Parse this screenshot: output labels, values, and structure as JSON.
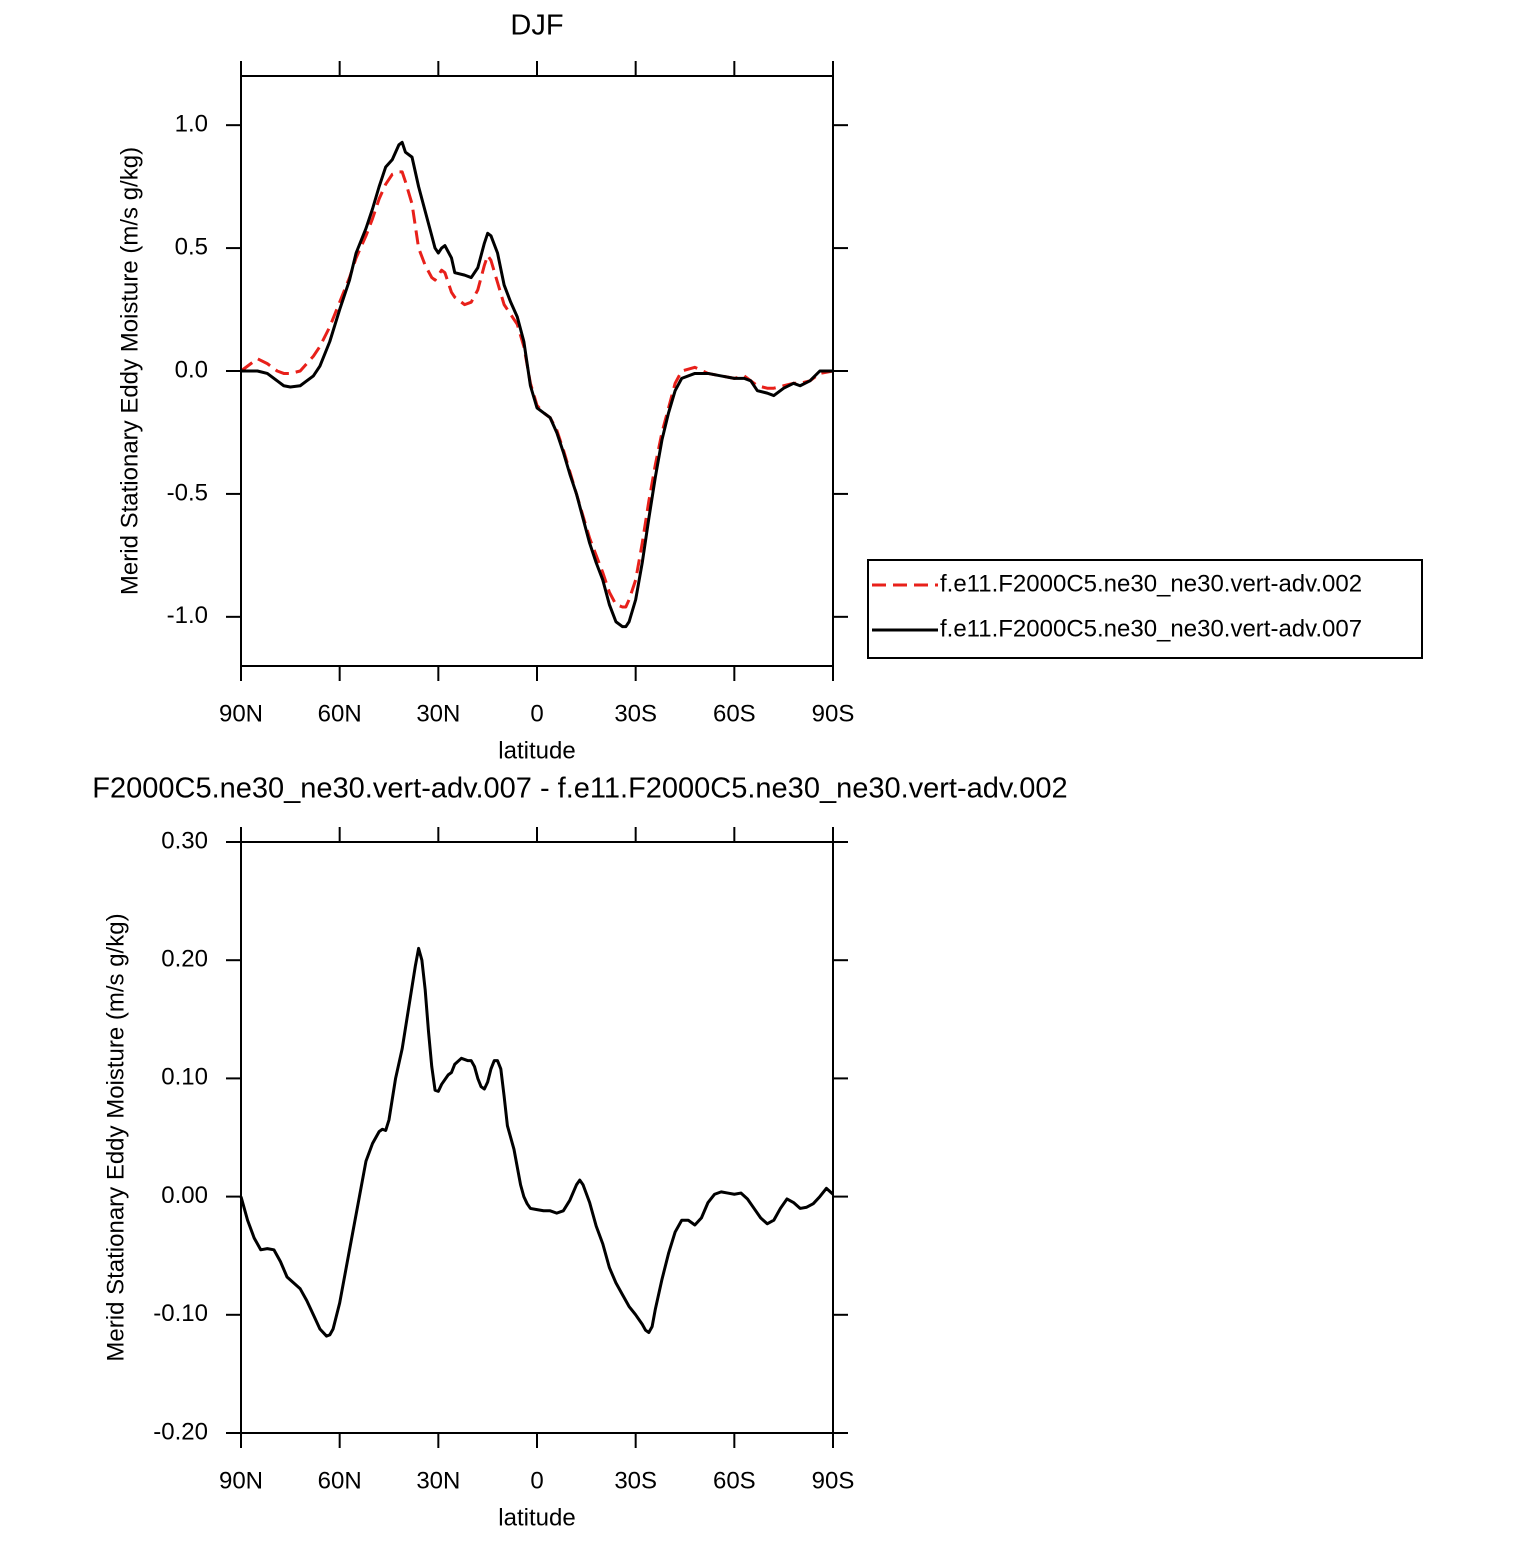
{
  "chart_data": [
    {
      "type": "line",
      "title": "DJF",
      "xlabel": "latitude",
      "ylabel": "Merid Stationary Eddy Moisture (m/s g/kg)",
      "xlim": [
        90,
        -90
      ],
      "ylim": [
        -1.2,
        1.2
      ],
      "xticks": [
        {
          "value": 90,
          "label": "90N"
        },
        {
          "value": 60,
          "label": "60N"
        },
        {
          "value": 30,
          "label": "30N"
        },
        0,
        {
          "value": -30,
          "label": "30S"
        },
        {
          "value": -60,
          "label": "60S"
        },
        {
          "value": -90,
          "label": "90S"
        }
      ],
      "yticks": [
        {
          "value": 1,
          "label": "1.0"
        },
        0.5,
        {
          "value": 0,
          "label": "0.0"
        },
        -0.5,
        {
          "value": -1,
          "label": "-1.0"
        }
      ],
      "legend": "right",
      "x": [
        90,
        87,
        85,
        82,
        79,
        77,
        75,
        72,
        70,
        68,
        66,
        63,
        60,
        57,
        55,
        52,
        50,
        48,
        46,
        44,
        42,
        41,
        40,
        38,
        36,
        34,
        32,
        31,
        30,
        29,
        28,
        26,
        25,
        22,
        20,
        18,
        16,
        15,
        14,
        12,
        10,
        8,
        6,
        4,
        2,
        0,
        -2,
        -4,
        -6,
        -8,
        -10,
        -12,
        -14,
        -16,
        -18,
        -20,
        -22,
        -24,
        -26,
        -27,
        -28,
        -30,
        -32,
        -34,
        -36,
        -38,
        -40,
        -42,
        -44,
        -48,
        -52,
        -56,
        -60,
        -63,
        -65,
        -67,
        -70,
        -72,
        -75,
        -78,
        -80,
        -83,
        -86,
        -90
      ],
      "series": [
        {
          "name": "f.e11.F2000C5.ne30_ne30.vert-adv.002",
          "color": "#e8201a",
          "style": "dashed",
          "values": [
            0,
            0.03,
            0.05,
            0.03,
            0.0,
            -0.01,
            -0.01,
            0.0,
            0.03,
            0.06,
            0.1,
            0.18,
            0.28,
            0.38,
            0.46,
            0.55,
            0.62,
            0.7,
            0.76,
            0.8,
            0.81,
            0.81,
            0.77,
            0.68,
            0.5,
            0.43,
            0.38,
            0.37,
            0.39,
            0.41,
            0.4,
            0.32,
            0.3,
            0.27,
            0.28,
            0.33,
            0.43,
            0.47,
            0.45,
            0.36,
            0.27,
            0.23,
            0.19,
            0.1,
            -0.05,
            -0.14,
            -0.17,
            -0.19,
            -0.24,
            -0.32,
            -0.41,
            -0.5,
            -0.59,
            -0.68,
            -0.75,
            -0.82,
            -0.9,
            -0.95,
            -0.96,
            -0.96,
            -0.93,
            -0.85,
            -0.7,
            -0.53,
            -0.38,
            -0.25,
            -0.15,
            -0.05,
            0.0,
            0.015,
            -0.01,
            -0.02,
            -0.03,
            -0.02,
            -0.04,
            -0.06,
            -0.07,
            -0.07,
            -0.06,
            -0.05,
            -0.05,
            -0.04,
            -0.01,
            0.0
          ]
        },
        {
          "name": "f.e11.F2000C5.ne30_ne30.vert-adv.007",
          "color": "#000000",
          "style": "solid",
          "values": [
            0,
            0,
            0,
            -0.01,
            -0.04,
            -0.06,
            -0.065,
            -0.06,
            -0.04,
            -0.02,
            0.02,
            0.12,
            0.25,
            0.37,
            0.48,
            0.58,
            0.66,
            0.75,
            0.83,
            0.86,
            0.92,
            0.93,
            0.89,
            0.87,
            0.75,
            0.65,
            0.55,
            0.5,
            0.48,
            0.5,
            0.51,
            0.46,
            0.4,
            0.39,
            0.38,
            0.42,
            0.52,
            0.56,
            0.55,
            0.48,
            0.35,
            0.28,
            0.22,
            0.12,
            -0.06,
            -0.15,
            -0.17,
            -0.19,
            -0.25,
            -0.33,
            -0.42,
            -0.5,
            -0.6,
            -0.7,
            -0.78,
            -0.85,
            -0.95,
            -1.02,
            -1.04,
            -1.04,
            -1.02,
            -0.93,
            -0.78,
            -0.6,
            -0.43,
            -0.28,
            -0.17,
            -0.08,
            -0.03,
            -0.01,
            -0.01,
            -0.02,
            -0.03,
            -0.03,
            -0.04,
            -0.08,
            -0.09,
            -0.1,
            -0.07,
            -0.05,
            -0.06,
            -0.04,
            0.0,
            0.0
          ]
        }
      ]
    },
    {
      "type": "line",
      "title": "F2000C5.ne30_ne30.vert-adv.007 - f.e11.F2000C5.ne30_ne30.vert-adv.002",
      "xlabel": "latitude",
      "ylabel": "Merid Stationary Eddy Moisture (m/s g/kg)",
      "xlim": [
        90,
        -90
      ],
      "ylim": [
        -0.2,
        0.3
      ],
      "xticks": [
        {
          "value": 90,
          "label": "90N"
        },
        {
          "value": 60,
          "label": "60N"
        },
        {
          "value": 30,
          "label": "30N"
        },
        0,
        {
          "value": -30,
          "label": "30S"
        },
        {
          "value": -60,
          "label": "60S"
        },
        {
          "value": -90,
          "label": "90S"
        }
      ],
      "yticks": [
        {
          "value": 0.3,
          "label": "0.30"
        },
        {
          "value": 0.2,
          "label": "0.20"
        },
        {
          "value": 0.1,
          "label": "0.10"
        },
        {
          "value": 0,
          "label": "0.00"
        },
        {
          "value": -0.1,
          "label": "-0.10"
        },
        {
          "value": -0.2,
          "label": "-0.20"
        }
      ],
      "x": [
        90,
        88,
        86,
        84,
        82,
        80,
        78,
        76,
        74,
        72,
        70,
        68,
        66,
        64,
        63,
        62,
        60,
        58,
        56,
        54,
        52,
        50,
        48,
        47,
        46,
        45,
        43,
        41,
        39,
        37,
        36,
        35,
        34,
        33,
        32,
        31,
        30,
        29,
        27,
        26,
        25,
        23,
        21,
        20,
        19,
        18,
        17,
        16,
        15,
        14,
        13,
        12,
        11,
        10,
        9,
        8,
        7,
        6,
        5,
        4,
        3,
        2,
        0,
        -2,
        -4,
        -6,
        -8,
        -10,
        -12,
        -13,
        -14,
        -16,
        -18,
        -20,
        -22,
        -24,
        -26,
        -28,
        -30,
        -32,
        -33,
        -34,
        -35,
        -36,
        -38,
        -40,
        -42,
        -44,
        -46,
        -48,
        -50,
        -52,
        -54,
        -56,
        -58,
        -60,
        -62,
        -64,
        -66,
        -68,
        -70,
        -72,
        -74,
        -76,
        -78,
        -80,
        -82,
        -84,
        -86,
        -88,
        -90
      ],
      "series": [
        {
          "color": "#000000",
          "style": "solid",
          "values": [
            0,
            -0.02,
            -0.035,
            -0.045,
            -0.044,
            -0.045,
            -0.055,
            -0.068,
            -0.073,
            -0.078,
            -0.088,
            -0.1,
            -0.112,
            -0.118,
            -0.117,
            -0.112,
            -0.09,
            -0.06,
            -0.03,
            0.0,
            0.03,
            0.045,
            0.055,
            0.057,
            0.056,
            0.065,
            0.1,
            0.125,
            0.16,
            0.195,
            0.21,
            0.2,
            0.175,
            0.14,
            0.11,
            0.09,
            0.089,
            0.095,
            0.103,
            0.105,
            0.112,
            0.117,
            0.115,
            0.115,
            0.11,
            0.1,
            0.093,
            0.091,
            0.097,
            0.108,
            0.115,
            0.115,
            0.108,
            0.085,
            0.06,
            0.05,
            0.04,
            0.025,
            0.01,
            0.0,
            -0.006,
            -0.01,
            -0.011,
            -0.012,
            -0.012,
            -0.014,
            -0.012,
            -0.003,
            0.01,
            0.014,
            0.01,
            -0.005,
            -0.025,
            -0.04,
            -0.06,
            -0.073,
            -0.083,
            -0.093,
            -0.1,
            -0.108,
            -0.113,
            -0.115,
            -0.11,
            -0.095,
            -0.07,
            -0.048,
            -0.03,
            -0.02,
            -0.02,
            -0.024,
            -0.018,
            -0.005,
            0.002,
            0.004,
            0.003,
            0.002,
            0.003,
            -0.002,
            -0.01,
            -0.018,
            -0.023,
            -0.02,
            -0.01,
            -0.002,
            -0.005,
            -0.01,
            -0.009,
            -0.006,
            0.0,
            0.007,
            0.002
          ]
        }
      ]
    }
  ]
}
